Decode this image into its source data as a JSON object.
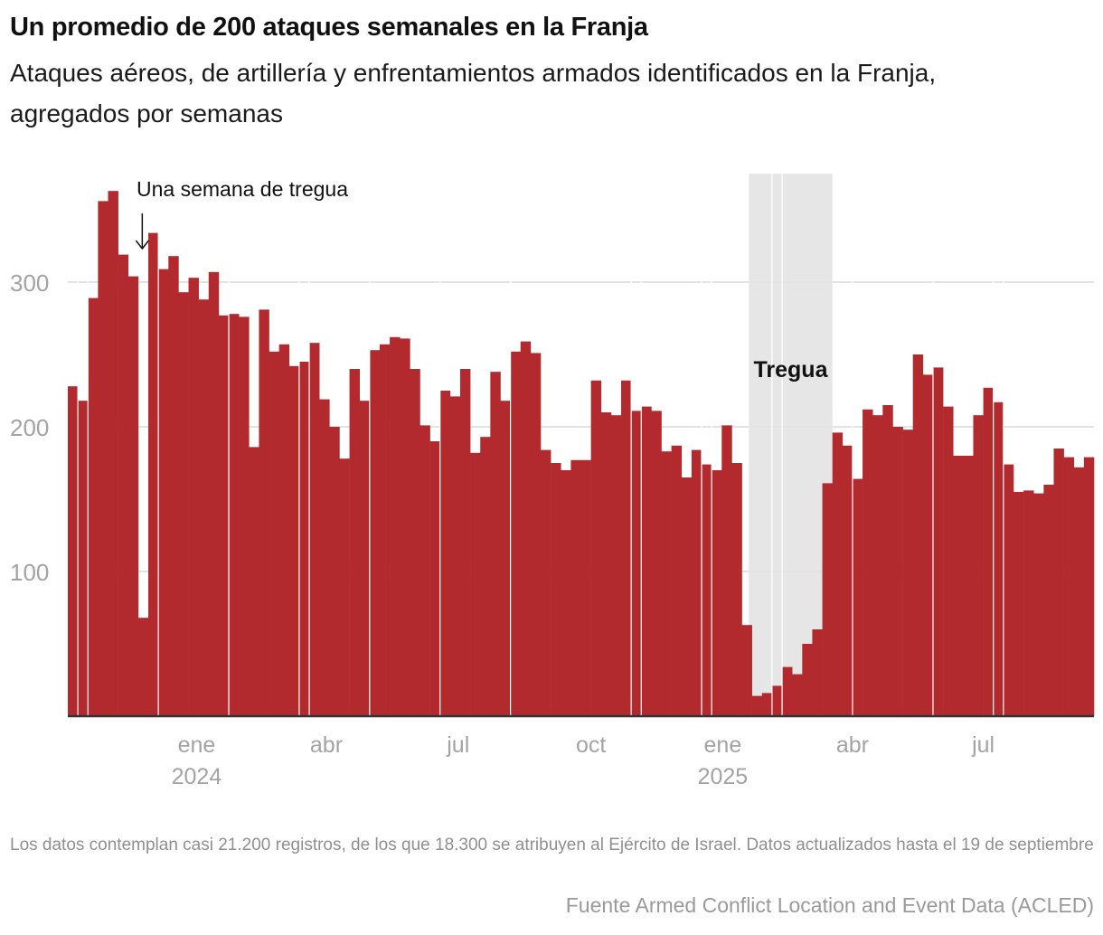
{
  "header": {
    "title": "Un promedio de 200 ataques semanales en la Franja",
    "subtitle": "Ataques aéreos, de artillería y enfrentamientos armados identificados en la Franja, agregados por semanas"
  },
  "footer": {
    "note": "Los datos contemplan casi 21.200 registros, de los que 18.300 se atribuyen al Ejército de Israel. Datos actualizados hasta el 19 de septiembre",
    "source": "Fuente Armed Conflict Location and Event Data (ACLED)"
  },
  "colors": {
    "bar": "#b22a2e",
    "shade": "#e6e6e6",
    "grid": "#e3e3e3",
    "axis": "#333333",
    "tick_label": "#a3a3a3"
  },
  "chart_data": {
    "type": "bar",
    "title": "Un promedio de 200 ataques semanales en la Franja",
    "xlabel": "",
    "ylabel": "",
    "ylim": [
      0,
      375
    ],
    "grid": true,
    "yticks": [
      100,
      200,
      300
    ],
    "xticks": [
      {
        "label": "ene",
        "year": "2024",
        "week_index": 12.8
      },
      {
        "label": "abr",
        "year": "",
        "week_index": 25.7
      },
      {
        "label": "jul",
        "year": "",
        "week_index": 38.8
      },
      {
        "label": "oct",
        "year": "",
        "week_index": 52.0
      },
      {
        "label": "ene",
        "year": "2025",
        "week_index": 65.1
      },
      {
        "label": "abr",
        "year": "",
        "week_index": 78.0
      },
      {
        "label": "jul",
        "year": "",
        "week_index": 91.0
      }
    ],
    "values": [
      228,
      218,
      289,
      356,
      363,
      319,
      304,
      68,
      334,
      309,
      318,
      293,
      303,
      288,
      307,
      277,
      278,
      276,
      186,
      281,
      252,
      257,
      242,
      245,
      258,
      219,
      200,
      178,
      240,
      218,
      253,
      257,
      262,
      261,
      240,
      201,
      190,
      225,
      221,
      240,
      182,
      193,
      238,
      218,
      252,
      259,
      251,
      184,
      175,
      170,
      177,
      177,
      232,
      210,
      208,
      232,
      211,
      214,
      211,
      183,
      187,
      165,
      184,
      174,
      170,
      201,
      175,
      63,
      14,
      16,
      21,
      34,
      29,
      50,
      60,
      161,
      196,
      187,
      164,
      212,
      208,
      215,
      200,
      198,
      250,
      236,
      241,
      214,
      180,
      180,
      208,
      227,
      217,
      174,
      155,
      156,
      154,
      160,
      185,
      179,
      172,
      179
    ],
    "separator_before_index": [
      1,
      2,
      9,
      16,
      23,
      24,
      30,
      37,
      44,
      56,
      57,
      63,
      64,
      70,
      71,
      78,
      86,
      92,
      93
    ],
    "annotations": [
      {
        "text": "Una semana de tregua",
        "week_index": 7,
        "type": "arrow"
      },
      {
        "text": "Tregua",
        "type": "shaded-range",
        "start_week_index": 67.7,
        "end_week_index": 76.0
      }
    ]
  }
}
